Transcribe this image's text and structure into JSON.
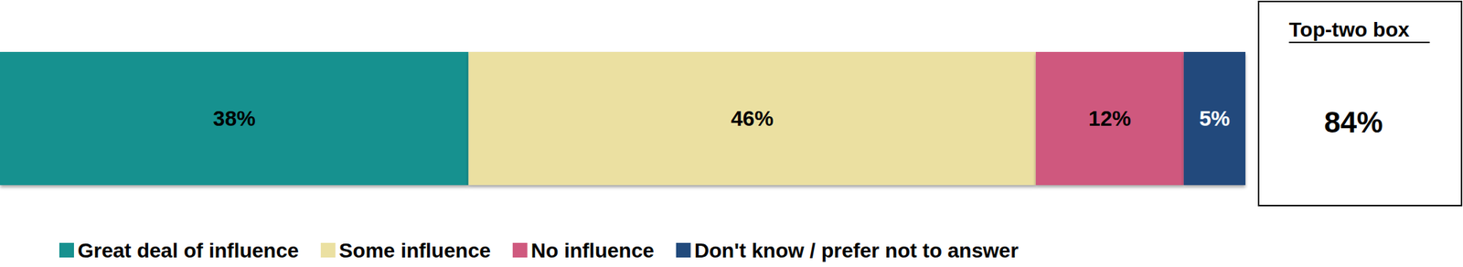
{
  "chart_data": {
    "type": "bar",
    "orientation": "horizontal",
    "stacked": true,
    "data_labels": true,
    "tick_labels": false,
    "grid": false,
    "legend": "bottom",
    "categories": [
      null
    ],
    "xlim": [
      0,
      101
    ],
    "series": [
      {
        "name": "Great deal of influence",
        "color": "#16918f",
        "values": [
          38
        ],
        "value_labels": [
          "38%"
        ]
      },
      {
        "name": "Some influence",
        "color": "#ebe0a1",
        "values": [
          46
        ],
        "value_labels": [
          "46%"
        ]
      },
      {
        "name": "No influence",
        "color": "#cf597e",
        "values": [
          12
        ],
        "value_labels": [
          "12%"
        ]
      },
      {
        "name": "Don't know / prefer not to answer",
        "color": "#214a7c",
        "values": [
          5
        ],
        "value_labels": [
          "5%"
        ]
      }
    ],
    "annotations": [
      "Top-two box",
      "84%"
    ]
  }
}
